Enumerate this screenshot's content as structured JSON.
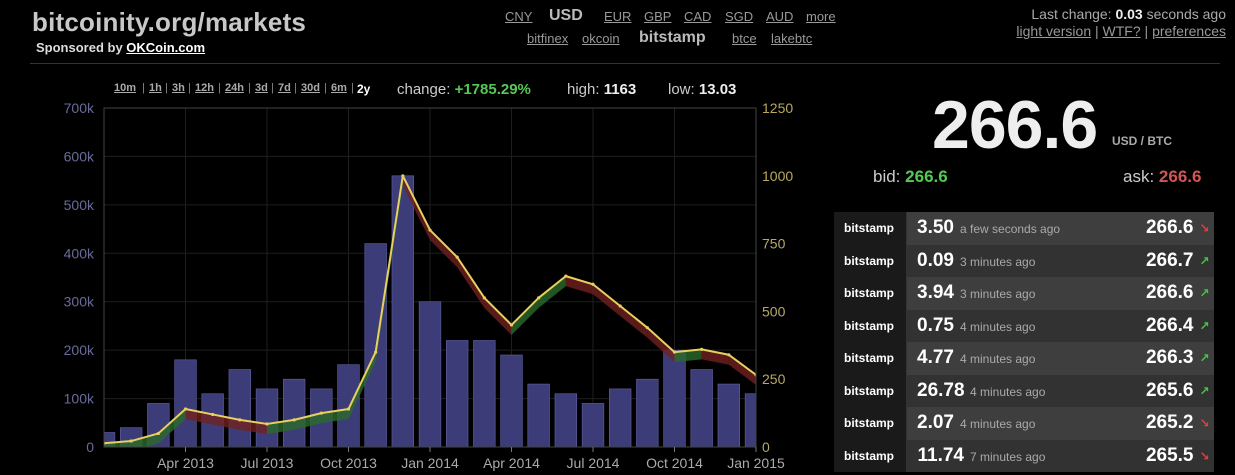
{
  "header": {
    "title": "bitcoinity.org/markets",
    "sponsor_prefix": "Sponsored by ",
    "sponsor_link": "OKCoin.com",
    "currencies": [
      "CNY",
      "USD",
      "EUR",
      "GBP",
      "CAD",
      "SGD",
      "AUD",
      "more"
    ],
    "active_currency": "USD",
    "exchanges": [
      "bitfinex",
      "okcoin",
      "bitstamp",
      "btce",
      "lakebtc"
    ],
    "active_exchange": "bitstamp",
    "last_change_prefix": "Last change: ",
    "last_change_value": "0.03",
    "last_change_suffix": " seconds ago",
    "links": [
      "light version",
      "WTF?",
      "preferences"
    ]
  },
  "timeranges": [
    "10m",
    "1h",
    "3h",
    "12h",
    "24h",
    "3d",
    "7d",
    "30d",
    "6m",
    "2y"
  ],
  "active_timerange": "2y",
  "stats": {
    "change_label": "change:",
    "change_value": "+1785.29%",
    "high_label": "high:",
    "high_value": "1163",
    "low_label": "low:",
    "low_value": "13.03"
  },
  "ticker": {
    "price": "266.6",
    "unit": "USD / BTC",
    "bid_label": "bid:",
    "bid_value": "266.6",
    "ask_label": "ask:",
    "ask_value": "266.6"
  },
  "trades": [
    {
      "exchange": "bitstamp",
      "amount": "3.50",
      "ago": "a few seconds ago",
      "price": "266.6",
      "dir": "down"
    },
    {
      "exchange": "bitstamp",
      "amount": "0.09",
      "ago": "3 minutes ago",
      "price": "266.7",
      "dir": "up"
    },
    {
      "exchange": "bitstamp",
      "amount": "3.94",
      "ago": "3 minutes ago",
      "price": "266.6",
      "dir": "up"
    },
    {
      "exchange": "bitstamp",
      "amount": "0.75",
      "ago": "4 minutes ago",
      "price": "266.4",
      "dir": "up"
    },
    {
      "exchange": "bitstamp",
      "amount": "4.77",
      "ago": "4 minutes ago",
      "price": "266.3",
      "dir": "up"
    },
    {
      "exchange": "bitstamp",
      "amount": "26.78",
      "ago": "4 minutes ago",
      "price": "265.6",
      "dir": "up"
    },
    {
      "exchange": "bitstamp",
      "amount": "2.07",
      "ago": "4 minutes ago",
      "price": "265.2",
      "dir": "down"
    },
    {
      "exchange": "bitstamp",
      "amount": "11.74",
      "ago": "7 minutes ago",
      "price": "265.5",
      "dir": "down"
    }
  ],
  "colors": {
    "volume": "#3c3c78",
    "price": "#e8d060",
    "up": "#2a6a2a",
    "down": "#702020",
    "background": "#000000"
  },
  "chart_data": {
    "type": "line",
    "series": [
      {
        "kind": "line",
        "axis": "right",
        "x": [
          "2013-01",
          "2013-02",
          "2013-03",
          "2013-04",
          "2013-05",
          "2013-06",
          "2013-07",
          "2013-08",
          "2013-09",
          "2013-10",
          "2013-11",
          "2013-12",
          "2014-01",
          "2014-02",
          "2014-03",
          "2014-04",
          "2014-05",
          "2014-06",
          "2014-07",
          "2014-08",
          "2014-09",
          "2014-10",
          "2014-11",
          "2014-12",
          "2015-01"
        ],
        "y": [
          14,
          22,
          50,
          140,
          120,
          100,
          85,
          100,
          125,
          140,
          350,
          1000,
          800,
          700,
          550,
          450,
          550,
          630,
          600,
          520,
          440,
          350,
          360,
          340,
          266
        ]
      },
      {
        "kind": "bar",
        "axis": "left",
        "x": [
          "2013-01",
          "2013-02",
          "2013-03",
          "2013-04",
          "2013-05",
          "2013-06",
          "2013-07",
          "2013-08",
          "2013-09",
          "2013-10",
          "2013-11",
          "2013-12",
          "2014-01",
          "2014-02",
          "2014-03",
          "2014-04",
          "2014-05",
          "2014-06",
          "2014-07",
          "2014-08",
          "2014-09",
          "2014-10",
          "2014-11",
          "2014-12",
          "2015-01"
        ],
        "y": [
          30000,
          40000,
          90000,
          180000,
          110000,
          160000,
          120000,
          140000,
          120000,
          170000,
          420000,
          560000,
          300000,
          220000,
          220000,
          190000,
          130000,
          110000,
          90000,
          120000,
          140000,
          200000,
          160000,
          130000,
          110000
        ]
      }
    ],
    "x_ticks": [
      "Apr 2013",
      "Jul 2013",
      "Oct 2013",
      "Jan 2014",
      "Apr 2014",
      "Jul 2014",
      "Oct 2014",
      "Jan 2015"
    ],
    "y_left_ticks": [
      "0",
      "100k",
      "200k",
      "300k",
      "400k",
      "500k",
      "600k",
      "700k"
    ],
    "y_right_ticks": [
      "0",
      "250",
      "500",
      "750",
      "1000",
      "1250"
    ],
    "ylim_left": [
      0,
      700000
    ],
    "ylim_right": [
      0,
      1250
    ],
    "grid": true
  }
}
